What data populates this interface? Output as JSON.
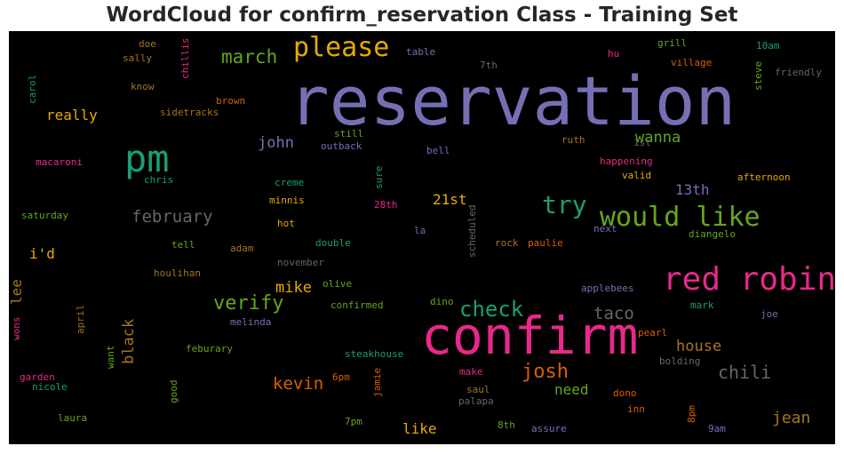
{
  "chart_data": {
    "type": "wordcloud",
    "title": "WordCloud for confirm_reservation Class - Training Set",
    "background": "#000000",
    "words": [
      {
        "text": "reservation",
        "color": "#7570b3"
      },
      {
        "text": "confirm",
        "color": "#e7298a"
      },
      {
        "text": "pm",
        "color": "#1b9e77"
      },
      {
        "text": "red robin",
        "color": "#e7298a"
      },
      {
        "text": "please",
        "color": "#e6ab02"
      },
      {
        "text": "would like",
        "color": "#66a61e"
      },
      {
        "text": "try",
        "color": "#1b9e77"
      },
      {
        "text": "check",
        "color": "#1b9e77"
      },
      {
        "text": "josh",
        "color": "#d95f02"
      },
      {
        "text": "verify",
        "color": "#66a61e"
      },
      {
        "text": "march",
        "color": "#66a61e"
      },
      {
        "text": "february",
        "color": "#666666"
      },
      {
        "text": "chili",
        "color": "#666666"
      },
      {
        "text": "taco",
        "color": "#666666"
      },
      {
        "text": "kevin",
        "color": "#d95f02"
      },
      {
        "text": "jean",
        "color": "#a6761d"
      },
      {
        "text": "house",
        "color": "#a6761d"
      },
      {
        "text": "mike",
        "color": "#e6ab02"
      },
      {
        "text": "john",
        "color": "#7570b3"
      },
      {
        "text": "black",
        "color": "#a6761d"
      },
      {
        "text": "wanna",
        "color": "#66a61e"
      },
      {
        "text": "really",
        "color": "#e6ab02"
      },
      {
        "text": "need",
        "color": "#66a61e"
      },
      {
        "text": "21st",
        "color": "#e6ab02"
      },
      {
        "text": "13th",
        "color": "#7570b3"
      },
      {
        "text": "like",
        "color": "#e6ab02"
      },
      {
        "text": "i'd",
        "color": "#e6ab02"
      },
      {
        "text": "lee",
        "color": "#a6761d"
      },
      {
        "text": "table",
        "color": "#7570b3"
      },
      {
        "text": "doe",
        "color": "#a6761d"
      },
      {
        "text": "sally",
        "color": "#a6761d"
      },
      {
        "text": "chillis",
        "color": "#e7298a"
      },
      {
        "text": "7th",
        "color": "#666666"
      },
      {
        "text": "grill",
        "color": "#66a61e"
      },
      {
        "text": "hu",
        "color": "#e7298a"
      },
      {
        "text": "village",
        "color": "#d95f02"
      },
      {
        "text": "10am",
        "color": "#1b9e77"
      },
      {
        "text": "steve",
        "color": "#66a61e"
      },
      {
        "text": "friendly",
        "color": "#666666"
      },
      {
        "text": "carol",
        "color": "#1b9e77"
      },
      {
        "text": "know",
        "color": "#a6761d"
      },
      {
        "text": "brown",
        "color": "#d95f02"
      },
      {
        "text": "sidetracks",
        "color": "#a6761d"
      },
      {
        "text": "still",
        "color": "#66a61e"
      },
      {
        "text": "ruth",
        "color": "#a6761d"
      },
      {
        "text": "1st",
        "color": "#666666"
      },
      {
        "text": "outback",
        "color": "#7570b3"
      },
      {
        "text": "bell",
        "color": "#7570b3"
      },
      {
        "text": "macaroni",
        "color": "#e7298a"
      },
      {
        "text": "chris",
        "color": "#1b9e77"
      },
      {
        "text": "creme",
        "color": "#1b9e77"
      },
      {
        "text": "sure",
        "color": "#1b9e77"
      },
      {
        "text": "happening",
        "color": "#e7298a"
      },
      {
        "text": "valid",
        "color": "#e6ab02"
      },
      {
        "text": "afternoon",
        "color": "#e6ab02"
      },
      {
        "text": "minnis",
        "color": "#e6ab02"
      },
      {
        "text": "28th",
        "color": "#e7298a"
      },
      {
        "text": "scheduled",
        "color": "#666666"
      },
      {
        "text": "saturday",
        "color": "#66a61e"
      },
      {
        "text": "hot",
        "color": "#e6ab02"
      },
      {
        "text": "la",
        "color": "#7570b3"
      },
      {
        "text": "next",
        "color": "#7570b3"
      },
      {
        "text": "diangelo",
        "color": "#66a61e"
      },
      {
        "text": "tell",
        "color": "#66a61e"
      },
      {
        "text": "adam",
        "color": "#a6761d"
      },
      {
        "text": "double",
        "color": "#1b9e77"
      },
      {
        "text": "rock",
        "color": "#a6761d"
      },
      {
        "text": "paulie",
        "color": "#d95f02"
      },
      {
        "text": "november",
        "color": "#666666"
      },
      {
        "text": "houlihan",
        "color": "#a6761d"
      },
      {
        "text": "olive",
        "color": "#66a61e"
      },
      {
        "text": "applebees",
        "color": "#7570b3"
      },
      {
        "text": "dino",
        "color": "#66a61e"
      },
      {
        "text": "confirmed",
        "color": "#66a61e"
      },
      {
        "text": "mark",
        "color": "#1b9e77"
      },
      {
        "text": "joe",
        "color": "#7570b3"
      },
      {
        "text": "wons",
        "color": "#e7298a"
      },
      {
        "text": "april",
        "color": "#a6761d"
      },
      {
        "text": "melinda",
        "color": "#7570b3"
      },
      {
        "text": "pearl",
        "color": "#d95f02"
      },
      {
        "text": "want",
        "color": "#66a61e"
      },
      {
        "text": "feburary",
        "color": "#66a61e"
      },
      {
        "text": "steakhouse",
        "color": "#1b9e77"
      },
      {
        "text": "bolding",
        "color": "#666666"
      },
      {
        "text": "garden",
        "color": "#e7298a"
      },
      {
        "text": "nicole",
        "color": "#1b9e77"
      },
      {
        "text": "good",
        "color": "#66a61e"
      },
      {
        "text": "6pm",
        "color": "#d95f02"
      },
      {
        "text": "jamie",
        "color": "#d95f02"
      },
      {
        "text": "make",
        "color": "#e7298a"
      },
      {
        "text": "saul",
        "color": "#a6761d"
      },
      {
        "text": "palapa",
        "color": "#666666"
      },
      {
        "text": "dono",
        "color": "#d95f02"
      },
      {
        "text": "inn",
        "color": "#d95f02"
      },
      {
        "text": "8pm",
        "color": "#d95f02"
      },
      {
        "text": "9am",
        "color": "#7570b3"
      },
      {
        "text": "laura",
        "color": "#66a61e"
      },
      {
        "text": "7pm",
        "color": "#66a61e"
      },
      {
        "text": "8th",
        "color": "#66a61e"
      },
      {
        "text": "assure",
        "color": "#7570b3"
      }
    ]
  }
}
